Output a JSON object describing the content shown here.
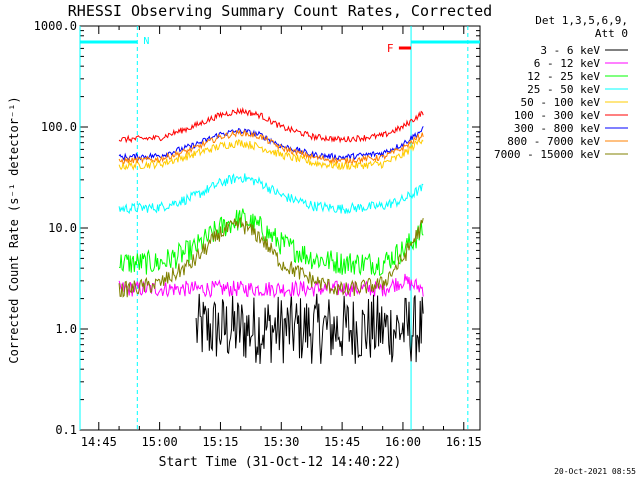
{
  "chart_data": {
    "type": "line",
    "title": "RHESSI Observing Summary Count Rates, Corrected",
    "xlabel": "Start Time (31-Oct-12 14:40:22)",
    "ylabel": "Corrected Count Rate (s⁻¹ detector⁻¹)",
    "y_scale": "log",
    "ylim": [
      0.1,
      1000
    ],
    "xlim": [
      "14:40:22",
      "16:19:00"
    ],
    "x_ticks": [
      "14:45",
      "15:00",
      "15:15",
      "15:30",
      "15:45",
      "16:00",
      "16:15"
    ],
    "y_ticks": [
      "0.1",
      "1.0",
      "10.0",
      "100.0",
      "1000.0"
    ],
    "legend": {
      "position": "top-right",
      "header": [
        "Det 1,3,5,6,9,",
        "Att 0"
      ]
    },
    "annotations": [
      {
        "label": "N",
        "color": "#00ffff",
        "meaning": "night interval",
        "x_start": "14:40:22",
        "x_end": "14:54:30"
      },
      {
        "label": "N",
        "color": "#00ffff",
        "meaning": "night interval",
        "x_start": "16:02:00",
        "x_end": "16:19:00"
      },
      {
        "label": "F",
        "color": "#ff0000",
        "meaning": "flag interval",
        "x_start": "15:59:00",
        "x_end": "16:02:00"
      }
    ],
    "vertical_markers": [
      {
        "x": "14:40:22",
        "color": "#00ffff",
        "style": "solid"
      },
      {
        "x": "14:54:30",
        "color": "#00ffff",
        "style": "dashed"
      },
      {
        "x": "16:02:00",
        "color": "#00ffff",
        "style": "solid"
      },
      {
        "x": "16:16:00",
        "color": "#00ffff",
        "style": "dashed"
      }
    ],
    "series": [
      {
        "name": "3 - 6 keV",
        "color": "#000000",
        "noise": 0.35,
        "points": [
          [
            "15:09",
            1.0
          ],
          [
            "15:15",
            1.0
          ],
          [
            "15:20",
            1.0
          ],
          [
            "15:30",
            1.0
          ],
          [
            "15:45",
            1.0
          ],
          [
            "15:55",
            1.0
          ],
          [
            "16:05",
            1.0
          ]
        ]
      },
      {
        "name": "6 - 12 keV",
        "color": "#ff00ff",
        "noise": 0.08,
        "points": [
          [
            "14:50",
            2.5
          ],
          [
            "15:00",
            2.5
          ],
          [
            "15:15",
            2.5
          ],
          [
            "15:30",
            2.5
          ],
          [
            "15:45",
            2.5
          ],
          [
            "15:55",
            2.5
          ],
          [
            "16:00",
            3.0
          ],
          [
            "16:05",
            2.5
          ]
        ]
      },
      {
        "name": "12 - 25 keV",
        "color": "#00ff00",
        "noise": 0.12,
        "points": [
          [
            "14:50",
            4.5
          ],
          [
            "15:00",
            4.5
          ],
          [
            "15:08",
            6.0
          ],
          [
            "15:15",
            10.0
          ],
          [
            "15:20",
            12.5
          ],
          [
            "15:25",
            10.0
          ],
          [
            "15:30",
            7.0
          ],
          [
            "15:38",
            5.0
          ],
          [
            "15:45",
            4.5
          ],
          [
            "15:55",
            4.5
          ],
          [
            "16:00",
            6.0
          ],
          [
            "16:05",
            9.5
          ]
        ]
      },
      {
        "name": "25 - 50 keV",
        "color": "#00ffff",
        "noise": 0.05,
        "points": [
          [
            "14:50",
            15.5
          ],
          [
            "15:00",
            16.0
          ],
          [
            "15:08",
            20.0
          ],
          [
            "15:15",
            28.0
          ],
          [
            "15:20",
            32.0
          ],
          [
            "15:25",
            28.0
          ],
          [
            "15:30",
            21.0
          ],
          [
            "15:38",
            16.5
          ],
          [
            "15:45",
            15.5
          ],
          [
            "15:55",
            16.5
          ],
          [
            "16:00",
            19.0
          ],
          [
            "16:05",
            25.0
          ]
        ]
      },
      {
        "name": "50 - 100 keV",
        "color": "#ffcc00",
        "noise": 0.04,
        "points": [
          [
            "14:50",
            41.0
          ],
          [
            "15:00",
            43.0
          ],
          [
            "15:08",
            53.0
          ],
          [
            "15:15",
            65.0
          ],
          [
            "15:20",
            70.0
          ],
          [
            "15:25",
            63.0
          ],
          [
            "15:30",
            53.0
          ],
          [
            "15:38",
            44.0
          ],
          [
            "15:45",
            41.0
          ],
          [
            "15:55",
            43.0
          ],
          [
            "16:00",
            53.0
          ],
          [
            "16:05",
            78.0
          ]
        ]
      },
      {
        "name": "100 - 300 keV",
        "color": "#ff0000",
        "noise": 0.03,
        "points": [
          [
            "14:50",
            75.0
          ],
          [
            "15:00",
            78.0
          ],
          [
            "15:08",
            100.0
          ],
          [
            "15:15",
            132.0
          ],
          [
            "15:20",
            145.0
          ],
          [
            "15:25",
            130.0
          ],
          [
            "15:30",
            100.0
          ],
          [
            "15:38",
            80.0
          ],
          [
            "15:45",
            75.0
          ],
          [
            "15:55",
            82.0
          ],
          [
            "16:00",
            100.0
          ],
          [
            "16:05",
            140.0
          ]
        ]
      },
      {
        "name": "300 - 800 keV",
        "color": "#0000ff",
        "noise": 0.03,
        "points": [
          [
            "14:50",
            50.0
          ],
          [
            "15:00",
            52.0
          ],
          [
            "15:08",
            65.0
          ],
          [
            "15:15",
            85.0
          ],
          [
            "15:20",
            92.0
          ],
          [
            "15:25",
            83.0
          ],
          [
            "15:30",
            65.0
          ],
          [
            "15:38",
            53.0
          ],
          [
            "15:45",
            50.0
          ],
          [
            "15:55",
            55.0
          ],
          [
            "16:00",
            68.0
          ],
          [
            "16:05",
            95.0
          ]
        ]
      },
      {
        "name": "800 - 7000 keV",
        "color": "#ff8000",
        "noise": 0.03,
        "points": [
          [
            "14:50",
            46.0
          ],
          [
            "15:00",
            48.0
          ],
          [
            "15:08",
            60.0
          ],
          [
            "15:15",
            80.0
          ],
          [
            "15:20",
            88.0
          ],
          [
            "15:25",
            80.0
          ],
          [
            "15:30",
            62.0
          ],
          [
            "15:38",
            50.0
          ],
          [
            "15:45",
            46.0
          ],
          [
            "15:55",
            50.0
          ],
          [
            "16:00",
            62.0
          ],
          [
            "16:05",
            85.0
          ]
        ]
      },
      {
        "name": "7000 - 15000 keV",
        "color": "#808000",
        "noise": 0.08,
        "points": [
          [
            "14:50",
            2.4
          ],
          [
            "15:00",
            2.8
          ],
          [
            "15:08",
            4.5
          ],
          [
            "15:15",
            9.0
          ],
          [
            "15:20",
            11.0
          ],
          [
            "15:25",
            8.0
          ],
          [
            "15:30",
            4.5
          ],
          [
            "15:38",
            3.0
          ],
          [
            "15:45",
            2.4
          ],
          [
            "15:55",
            2.8
          ],
          [
            "16:00",
            5.0
          ],
          [
            "16:05",
            11.0
          ]
        ]
      }
    ]
  },
  "timestamp": "20-Oct-2021 08:55"
}
